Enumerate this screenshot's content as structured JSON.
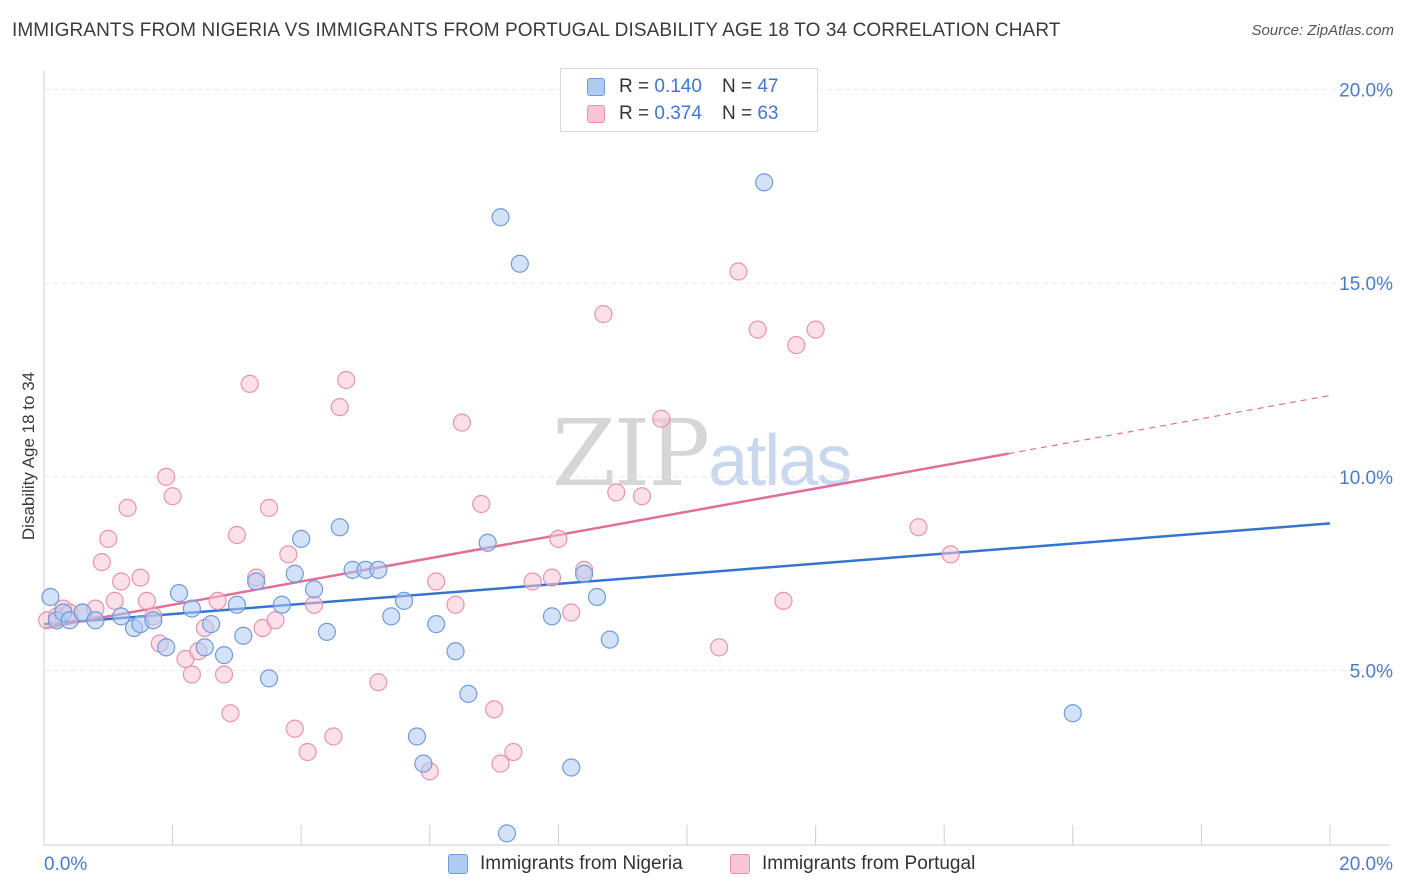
{
  "title": "IMMIGRANTS FROM NIGERIA VS IMMIGRANTS FROM PORTUGAL DISABILITY AGE 18 TO 34 CORRELATION CHART",
  "source": "Source: ZipAtlas.com",
  "watermark": {
    "zip": "ZIP",
    "atlas": "atlas"
  },
  "legend_top": [
    {
      "r_label": "R =",
      "r_value": "0.140",
      "n_label": "N =",
      "n_value": "47"
    },
    {
      "r_label": "R =",
      "r_value": "0.374",
      "n_label": "N =",
      "n_value": "63"
    }
  ],
  "colors": {
    "nigeria_fill": "#aecbf2",
    "nigeria_stroke": "#6f9bd8",
    "nigeria_line": "#3574cf",
    "portugal_fill": "#f8c6d6",
    "portugal_stroke": "#e892b0",
    "portugal_line": "#e0709a",
    "grid": "#e6e6e6",
    "tick_text": "#4a7cc9"
  },
  "chart_data": {
    "type": "scatter",
    "title": "IMMIGRANTS FROM NIGERIA VS IMMIGRANTS FROM PORTUGAL DISABILITY AGE 18 TO 34 CORRELATION CHART",
    "xlabel": "",
    "ylabel": "Disability Age 18 to 34",
    "xlim": [
      0,
      20
    ],
    "ylim": [
      0.5,
      20.5
    ],
    "x_tick_labels": [
      "0.0%",
      "20.0%"
    ],
    "y_ticks": [
      5,
      10,
      15,
      20
    ],
    "y_tick_labels": [
      "5.0%",
      "10.0%",
      "15.0%",
      "20.0%"
    ],
    "grid": true,
    "legend_position": "top-center",
    "series": [
      {
        "name": "Immigrants from Nigeria",
        "r": 0.14,
        "n": 47,
        "trend": {
          "x": [
            0,
            20
          ],
          "y": [
            6.2,
            8.8
          ]
        },
        "points": [
          [
            0.1,
            6.9
          ],
          [
            0.2,
            6.3
          ],
          [
            0.3,
            6.5
          ],
          [
            0.4,
            6.3
          ],
          [
            0.6,
            6.5
          ],
          [
            0.8,
            6.3
          ],
          [
            1.2,
            6.4
          ],
          [
            1.4,
            6.1
          ],
          [
            1.5,
            6.2
          ],
          [
            1.7,
            6.3
          ],
          [
            1.9,
            5.6
          ],
          [
            2.1,
            7.0
          ],
          [
            2.3,
            6.6
          ],
          [
            2.5,
            5.6
          ],
          [
            2.6,
            6.2
          ],
          [
            2.8,
            5.4
          ],
          [
            3.0,
            6.7
          ],
          [
            3.1,
            5.9
          ],
          [
            3.3,
            7.3
          ],
          [
            3.5,
            4.8
          ],
          [
            3.7,
            6.7
          ],
          [
            3.9,
            7.5
          ],
          [
            4.0,
            8.4
          ],
          [
            4.2,
            7.1
          ],
          [
            4.4,
            6.0
          ],
          [
            4.6,
            8.7
          ],
          [
            4.8,
            7.6
          ],
          [
            5.0,
            7.6
          ],
          [
            5.2,
            7.6
          ],
          [
            5.4,
            6.4
          ],
          [
            5.6,
            6.8
          ],
          [
            5.8,
            3.3
          ],
          [
            5.9,
            2.6
          ],
          [
            6.1,
            6.2
          ],
          [
            6.4,
            5.5
          ],
          [
            6.6,
            4.4
          ],
          [
            6.9,
            8.3
          ],
          [
            7.1,
            16.7
          ],
          [
            7.2,
            0.8
          ],
          [
            7.4,
            15.5
          ],
          [
            7.9,
            6.4
          ],
          [
            8.2,
            2.5
          ],
          [
            8.4,
            7.5
          ],
          [
            8.6,
            6.9
          ],
          [
            8.8,
            5.8
          ],
          [
            11.2,
            17.6
          ],
          [
            16.0,
            3.9
          ]
        ]
      },
      {
        "name": "Immigrants from Portugal",
        "r": 0.374,
        "n": 63,
        "trend": {
          "x": [
            0,
            15
          ],
          "y": [
            6.1,
            10.6
          ]
        },
        "trend_dashed": {
          "x": [
            15,
            20
          ],
          "y": [
            10.6,
            12.1
          ]
        },
        "points": [
          [
            0.05,
            6.3
          ],
          [
            0.2,
            6.4
          ],
          [
            0.3,
            6.6
          ],
          [
            0.4,
            6.5
          ],
          [
            0.6,
            6.5
          ],
          [
            0.8,
            6.6
          ],
          [
            0.9,
            7.8
          ],
          [
            1.0,
            8.4
          ],
          [
            1.1,
            6.8
          ],
          [
            1.2,
            7.3
          ],
          [
            1.3,
            9.2
          ],
          [
            1.5,
            7.4
          ],
          [
            1.6,
            6.8
          ],
          [
            1.7,
            6.4
          ],
          [
            1.8,
            5.7
          ],
          [
            1.9,
            10.0
          ],
          [
            2.0,
            9.5
          ],
          [
            2.2,
            5.3
          ],
          [
            2.3,
            4.9
          ],
          [
            2.4,
            5.5
          ],
          [
            2.5,
            6.1
          ],
          [
            2.7,
            6.8
          ],
          [
            2.8,
            4.9
          ],
          [
            2.9,
            3.9
          ],
          [
            3.0,
            8.5
          ],
          [
            3.2,
            12.4
          ],
          [
            3.3,
            7.4
          ],
          [
            3.4,
            6.1
          ],
          [
            3.5,
            9.2
          ],
          [
            3.6,
            6.3
          ],
          [
            3.8,
            8.0
          ],
          [
            3.9,
            3.5
          ],
          [
            4.1,
            2.9
          ],
          [
            4.2,
            6.7
          ],
          [
            4.5,
            3.3
          ],
          [
            4.6,
            11.8
          ],
          [
            4.7,
            12.5
          ],
          [
            5.2,
            4.7
          ],
          [
            6.0,
            2.4
          ],
          [
            6.1,
            7.3
          ],
          [
            6.4,
            6.7
          ],
          [
            6.5,
            11.4
          ],
          [
            6.8,
            9.3
          ],
          [
            7.0,
            4.0
          ],
          [
            7.1,
            2.6
          ],
          [
            7.3,
            2.9
          ],
          [
            7.6,
            7.3
          ],
          [
            7.9,
            7.4
          ],
          [
            8.0,
            8.4
          ],
          [
            8.2,
            6.5
          ],
          [
            8.4,
            7.6
          ],
          [
            8.7,
            14.2
          ],
          [
            8.9,
            9.6
          ],
          [
            9.3,
            9.5
          ],
          [
            9.6,
            11.5
          ],
          [
            10.5,
            5.6
          ],
          [
            10.8,
            15.3
          ],
          [
            11.1,
            13.8
          ],
          [
            11.5,
            6.8
          ],
          [
            11.7,
            13.4
          ],
          [
            12.0,
            13.8
          ],
          [
            13.6,
            8.7
          ],
          [
            14.1,
            8.0
          ]
        ]
      }
    ]
  },
  "bottom_legend": {
    "nigeria": "Immigrants from Nigeria",
    "portugal": "Immigrants from Portugal"
  }
}
